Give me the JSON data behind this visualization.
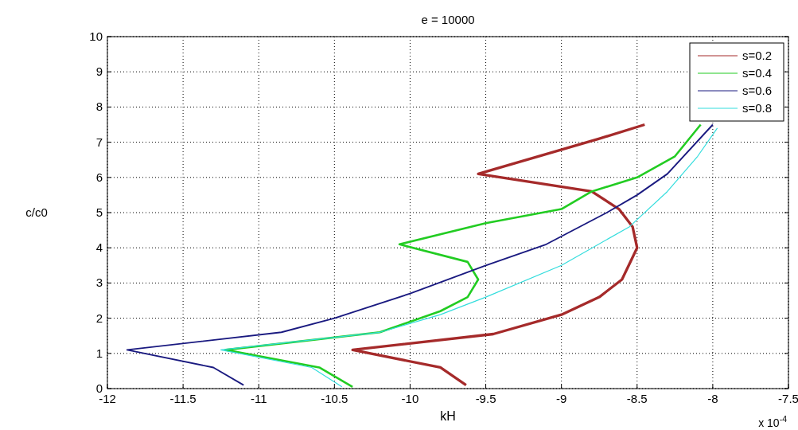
{
  "chart_data": {
    "type": "line",
    "title": "e = 10000",
    "xlabel": "kH",
    "ylabel": "c/c0",
    "annotations": [
      "x 10$^{-4}$"
    ],
    "xlim": [
      -12,
      -7.5
    ],
    "xticks": [
      -12,
      -11.5,
      -11,
      -10.5,
      -10,
      -9.5,
      -9,
      -8.5,
      -8,
      -7.5
    ],
    "ylim": [
      0,
      10
    ],
    "yticks": [
      0,
      1,
      2,
      3,
      4,
      5,
      6,
      7,
      8,
      9,
      10
    ],
    "grid": true,
    "legend": "top right",
    "line_style": "solid",
    "series": [
      {
        "name": "s=0.2",
        "color": "#a52a2a",
        "x": [
          -9.63,
          -9.8,
          -10.38,
          -9.45,
          -9.0,
          -8.75,
          -8.6,
          -8.5,
          -8.53,
          -8.62,
          -8.8,
          -9.55,
          -8.75,
          -8.45
        ],
        "values": [
          0.1,
          0.6,
          1.1,
          1.55,
          2.1,
          2.6,
          3.1,
          4.0,
          4.6,
          5.1,
          5.6,
          6.1,
          7.1,
          7.5
        ]
      },
      {
        "name": "s=0.4",
        "color": "#22cc22",
        "x": [
          -10.38,
          -10.6,
          -11.22,
          -10.2,
          -9.8,
          -9.62,
          -9.55,
          -9.62,
          -10.07,
          -9.5,
          -9.0,
          -8.8,
          -8.5,
          -8.25,
          -8.08
        ],
        "values": [
          0.05,
          0.6,
          1.1,
          1.6,
          2.2,
          2.6,
          3.1,
          3.6,
          4.1,
          4.7,
          5.1,
          5.6,
          6.0,
          6.6,
          7.5
        ]
      },
      {
        "name": "s=0.6",
        "color": "#1a1a80",
        "x": [
          -11.1,
          -11.3,
          -11.87,
          -10.85,
          -10.5,
          -10.0,
          -9.5,
          -9.1,
          -8.7,
          -8.5,
          -8.3,
          -8.0
        ],
        "values": [
          0.1,
          0.6,
          1.1,
          1.6,
          2.0,
          2.7,
          3.5,
          4.1,
          5.0,
          5.5,
          6.1,
          7.5
        ]
      },
      {
        "name": "s=0.8",
        "color": "#33dddd",
        "x": [
          -10.45,
          -10.65,
          -11.25,
          -10.2,
          -9.8,
          -9.5,
          -9.0,
          -8.55,
          -8.3,
          -8.1,
          -7.97
        ],
        "values": [
          0.05,
          0.6,
          1.1,
          1.6,
          2.1,
          2.6,
          3.5,
          4.6,
          5.6,
          6.6,
          7.4
        ]
      }
    ]
  }
}
